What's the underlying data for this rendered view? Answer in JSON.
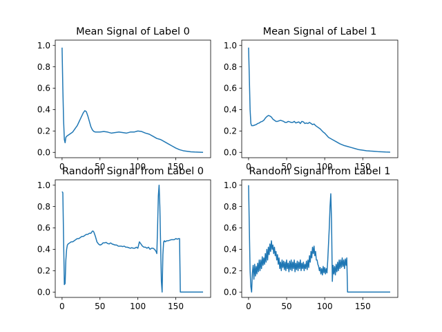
{
  "figure": {
    "background": "#ffffff",
    "line_color": "#1f77b4"
  },
  "chart_data": [
    {
      "type": "line",
      "title": "Mean Signal of Label 0",
      "xlim": [
        -9,
        196
      ],
      "ylim": [
        -0.05,
        1.05
      ],
      "xticks": [
        0,
        50,
        100,
        150
      ],
      "yticks": [
        0.0,
        0.2,
        0.4,
        0.6,
        0.8,
        1.0
      ],
      "tick_labels_x": [
        "0",
        "50",
        "100",
        "150"
      ],
      "tick_labels_y": [
        "0.0",
        "0.2",
        "0.4",
        "0.6",
        "0.8",
        "1.0"
      ],
      "series": [
        {
          "x": [
            0,
            1,
            2,
            3,
            4,
            5,
            6,
            8,
            10,
            12,
            14,
            16,
            18,
            20,
            22,
            24,
            26,
            28,
            30,
            32,
            34,
            36,
            38,
            40,
            42,
            44,
            46,
            48,
            50,
            55,
            60,
            65,
            70,
            75,
            80,
            85,
            90,
            95,
            100,
            105,
            110,
            115,
            120,
            125,
            130,
            135,
            140,
            145,
            150,
            155,
            160,
            165,
            170,
            175,
            180,
            186
          ],
          "y": [
            0.98,
            0.6,
            0.3,
            0.12,
            0.09,
            0.14,
            0.15,
            0.16,
            0.17,
            0.18,
            0.19,
            0.21,
            0.23,
            0.25,
            0.28,
            0.31,
            0.34,
            0.37,
            0.39,
            0.38,
            0.34,
            0.29,
            0.24,
            0.21,
            0.195,
            0.19,
            0.19,
            0.19,
            0.19,
            0.195,
            0.19,
            0.18,
            0.185,
            0.19,
            0.185,
            0.18,
            0.19,
            0.19,
            0.2,
            0.195,
            0.18,
            0.17,
            0.15,
            0.13,
            0.12,
            0.1,
            0.08,
            0.06,
            0.04,
            0.025,
            0.015,
            0.01,
            0.005,
            0.003,
            0.002,
            0.0
          ]
        }
      ]
    },
    {
      "type": "line",
      "title": "Mean Signal of Label 1",
      "xlim": [
        -9,
        196
      ],
      "ylim": [
        -0.05,
        1.05
      ],
      "xticks": [
        0,
        50,
        100,
        150
      ],
      "yticks": [
        0.0,
        0.2,
        0.4,
        0.6,
        0.8,
        1.0
      ],
      "tick_labels_x": [
        "0",
        "50",
        "100",
        "150"
      ],
      "tick_labels_y": [
        "0.0",
        "0.2",
        "0.4",
        "0.6",
        "0.8",
        "1.0"
      ],
      "series": [
        {
          "x": [
            0,
            1,
            2,
            3,
            4,
            6,
            8,
            10,
            12,
            14,
            16,
            18,
            20,
            22,
            24,
            26,
            28,
            30,
            32,
            34,
            36,
            38,
            40,
            42,
            44,
            46,
            48,
            50,
            52,
            54,
            56,
            58,
            60,
            62,
            64,
            66,
            68,
            70,
            72,
            74,
            76,
            78,
            80,
            82,
            84,
            86,
            88,
            90,
            92,
            94,
            96,
            98,
            100,
            105,
            110,
            115,
            120,
            125,
            130,
            135,
            140,
            145,
            150,
            155,
            160,
            165,
            170,
            175,
            180,
            186
          ],
          "y": [
            0.98,
            0.7,
            0.4,
            0.27,
            0.25,
            0.25,
            0.255,
            0.26,
            0.27,
            0.275,
            0.285,
            0.29,
            0.3,
            0.32,
            0.335,
            0.345,
            0.34,
            0.33,
            0.31,
            0.3,
            0.29,
            0.29,
            0.295,
            0.3,
            0.295,
            0.29,
            0.28,
            0.28,
            0.29,
            0.285,
            0.28,
            0.28,
            0.29,
            0.275,
            0.28,
            0.285,
            0.27,
            0.29,
            0.285,
            0.27,
            0.275,
            0.27,
            0.28,
            0.27,
            0.26,
            0.265,
            0.25,
            0.24,
            0.23,
            0.22,
            0.205,
            0.19,
            0.18,
            0.14,
            0.12,
            0.1,
            0.08,
            0.065,
            0.055,
            0.045,
            0.035,
            0.025,
            0.02,
            0.015,
            0.012,
            0.01,
            0.007,
            0.005,
            0.003,
            0.002
          ]
        }
      ]
    },
    {
      "type": "line",
      "title": "Random Signal from Label 0",
      "xlim": [
        -9,
        196
      ],
      "ylim": [
        -0.05,
        1.05
      ],
      "xticks": [
        0,
        50,
        100,
        150
      ],
      "yticks": [
        0.0,
        0.2,
        0.4,
        0.6,
        0.8,
        1.0
      ],
      "tick_labels_x": [
        "0",
        "50",
        "100",
        "150"
      ],
      "tick_labels_y": [
        "0.0",
        "0.2",
        "0.4",
        "0.6",
        "0.8",
        "1.0"
      ],
      "series": [
        {
          "x": [
            0,
            1,
            2,
            3,
            4,
            5,
            6,
            7,
            8,
            10,
            12,
            14,
            16,
            18,
            20,
            22,
            24,
            26,
            28,
            30,
            32,
            34,
            36,
            38,
            40,
            41,
            42,
            44,
            46,
            48,
            50,
            52,
            54,
            56,
            58,
            60,
            62,
            64,
            66,
            68,
            70,
            72,
            74,
            76,
            78,
            80,
            82,
            84,
            86,
            88,
            90,
            92,
            94,
            96,
            98,
            100,
            102,
            103,
            104,
            106,
            108,
            110,
            112,
            114,
            116,
            118,
            120,
            122,
            124,
            125,
            126,
            127,
            128,
            129,
            130,
            131,
            132,
            133,
            134,
            135,
            136,
            138,
            140,
            142,
            144,
            146,
            148,
            150,
            152,
            154,
            155,
            156,
            157,
            160,
            170,
            180,
            186
          ],
          "y": [
            0.94,
            0.93,
            0.5,
            0.07,
            0.08,
            0.3,
            0.4,
            0.44,
            0.45,
            0.46,
            0.47,
            0.47,
            0.48,
            0.49,
            0.5,
            0.5,
            0.51,
            0.52,
            0.52,
            0.53,
            0.54,
            0.54,
            0.55,
            0.55,
            0.57,
            0.57,
            0.56,
            0.52,
            0.47,
            0.45,
            0.44,
            0.445,
            0.46,
            0.46,
            0.465,
            0.455,
            0.45,
            0.46,
            0.45,
            0.445,
            0.44,
            0.44,
            0.43,
            0.43,
            0.43,
            0.425,
            0.43,
            0.42,
            0.42,
            0.415,
            0.41,
            0.415,
            0.41,
            0.41,
            0.42,
            0.41,
            0.47,
            0.46,
            0.45,
            0.43,
            0.42,
            0.42,
            0.41,
            0.42,
            0.4,
            0.41,
            0.41,
            0.4,
            0.38,
            0.36,
            0.6,
            0.9,
            1.0,
            0.8,
            0.45,
            0.1,
            0.0,
            0.35,
            0.47,
            0.48,
            0.47,
            0.48,
            0.48,
            0.485,
            0.49,
            0.49,
            0.49,
            0.5,
            0.495,
            0.5,
            0.5,
            0.0,
            0.0,
            0.0,
            0.0,
            0.0,
            0.0
          ]
        }
      ]
    },
    {
      "type": "line",
      "title": "Random Signal from Label 1",
      "xlim": [
        -9,
        196
      ],
      "ylim": [
        -0.05,
        1.05
      ],
      "xticks": [
        0,
        50,
        100,
        150
      ],
      "yticks": [
        0.0,
        0.2,
        0.4,
        0.6,
        0.8,
        1.0
      ],
      "tick_labels_x": [
        "0",
        "50",
        "100",
        "150"
      ],
      "tick_labels_y": [
        "0.0",
        "0.2",
        "0.4",
        "0.6",
        "0.8",
        "1.0"
      ],
      "series": [
        {
          "x": [
            0,
            1,
            2,
            3,
            4,
            5,
            6,
            7,
            8,
            9,
            10,
            11,
            12,
            13,
            14,
            15,
            16,
            17,
            18,
            19,
            20,
            21,
            22,
            23,
            24,
            25,
            26,
            27,
            28,
            29,
            30,
            31,
            32,
            33,
            34,
            35,
            36,
            37,
            38,
            39,
            40,
            41,
            42,
            43,
            44,
            45,
            46,
            47,
            48,
            49,
            50,
            51,
            52,
            53,
            54,
            55,
            56,
            57,
            58,
            59,
            60,
            61,
            62,
            63,
            64,
            65,
            66,
            67,
            68,
            69,
            70,
            71,
            72,
            73,
            74,
            75,
            76,
            77,
            78,
            79,
            80,
            81,
            82,
            83,
            84,
            85,
            86,
            87,
            88,
            89,
            90,
            91,
            92,
            93,
            94,
            95,
            96,
            97,
            98,
            99,
            100,
            101,
            102,
            103,
            104,
            105,
            106,
            107,
            108,
            109,
            110,
            111,
            112,
            113,
            114,
            115,
            116,
            117,
            118,
            119,
            120,
            121,
            122,
            123,
            124,
            125,
            126,
            127,
            128,
            129,
            130,
            131,
            132,
            135,
            150,
            170,
            186
          ],
          "y": [
            1.0,
            0.6,
            0.2,
            0.05,
            0.0,
            0.18,
            0.25,
            0.12,
            0.26,
            0.15,
            0.24,
            0.17,
            0.27,
            0.19,
            0.3,
            0.2,
            0.3,
            0.22,
            0.33,
            0.25,
            0.32,
            0.26,
            0.36,
            0.28,
            0.4,
            0.3,
            0.42,
            0.35,
            0.45,
            0.38,
            0.48,
            0.4,
            0.44,
            0.36,
            0.42,
            0.34,
            0.38,
            0.3,
            0.35,
            0.26,
            0.32,
            0.22,
            0.28,
            0.2,
            0.3,
            0.23,
            0.29,
            0.21,
            0.28,
            0.2,
            0.3,
            0.22,
            0.27,
            0.19,
            0.29,
            0.21,
            0.3,
            0.2,
            0.28,
            0.22,
            0.3,
            0.19,
            0.27,
            0.21,
            0.29,
            0.2,
            0.28,
            0.22,
            0.3,
            0.2,
            0.27,
            0.22,
            0.28,
            0.2,
            0.26,
            0.22,
            0.29,
            0.21,
            0.3,
            0.23,
            0.34,
            0.28,
            0.38,
            0.32,
            0.42,
            0.36,
            0.43,
            0.34,
            0.38,
            0.3,
            0.3,
            0.26,
            0.24,
            0.2,
            0.23,
            0.17,
            0.22,
            0.16,
            0.24,
            0.18,
            0.23,
            0.17,
            0.22,
            0.18,
            0.3,
            0.45,
            0.6,
            0.8,
            0.92,
            0.65,
            0.1,
            0.25,
            0.17,
            0.24,
            0.16,
            0.26,
            0.19,
            0.28,
            0.2,
            0.3,
            0.22,
            0.3,
            0.23,
            0.32,
            0.24,
            0.3,
            0.22,
            0.31,
            0.25,
            0.32,
            0.0,
            0.0,
            0.0,
            0.0,
            0.0,
            0.0,
            0.0
          ]
        }
      ]
    }
  ]
}
